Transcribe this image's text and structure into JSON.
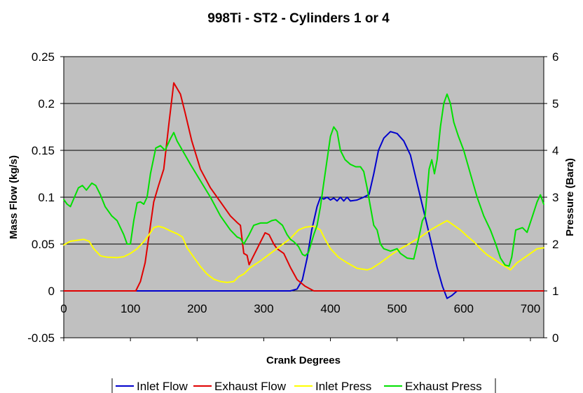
{
  "chart_data": {
    "type": "line",
    "title": "998Ti - ST2 - Cylinders 1 or 4",
    "xlabel": "Crank Degrees",
    "ylabel": "Mass Flow (kg/s)",
    "y2label": "Pressure (Bara)",
    "xlim": [
      0,
      720
    ],
    "ylim": [
      -0.05,
      0.25
    ],
    "y2lim": [
      0,
      6
    ],
    "x_ticks": [
      "0",
      "100",
      "200",
      "300",
      "400",
      "500",
      "600",
      "700"
    ],
    "y_ticks": [
      "-0.05",
      "0",
      "0.05",
      "0.1",
      "0.15",
      "0.2",
      "0.25"
    ],
    "y2_ticks": [
      "0",
      "1",
      "2",
      "3",
      "4",
      "5",
      "6"
    ],
    "grid": "horizontal",
    "plot_background": "#c0c0c0",
    "legend_position": "bottom",
    "series": [
      {
        "name": "Inlet Flow",
        "axis": "left",
        "color": "#0000cc",
        "points": [
          [
            0,
            0
          ],
          [
            340,
            0
          ],
          [
            350,
            0.002
          ],
          [
            358,
            0.012
          ],
          [
            365,
            0.035
          ],
          [
            372,
            0.065
          ],
          [
            380,
            0.09
          ],
          [
            385,
            0.1
          ],
          [
            390,
            0.098
          ],
          [
            395,
            0.1
          ],
          [
            400,
            0.097
          ],
          [
            405,
            0.099
          ],
          [
            410,
            0.096
          ],
          [
            415,
            0.1
          ],
          [
            420,
            0.096
          ],
          [
            425,
            0.1
          ],
          [
            430,
            0.096
          ],
          [
            440,
            0.097
          ],
          [
            450,
            0.1
          ],
          [
            458,
            0.103
          ],
          [
            465,
            0.125
          ],
          [
            472,
            0.15
          ],
          [
            480,
            0.163
          ],
          [
            490,
            0.17
          ],
          [
            500,
            0.168
          ],
          [
            510,
            0.16
          ],
          [
            520,
            0.145
          ],
          [
            530,
            0.115
          ],
          [
            540,
            0.085
          ],
          [
            550,
            0.055
          ],
          [
            560,
            0.025
          ],
          [
            568,
            0.005
          ],
          [
            575,
            -0.008
          ],
          [
            582,
            -0.005
          ],
          [
            590,
            0
          ],
          [
            720,
            0
          ]
        ]
      },
      {
        "name": "Exhaust Flow",
        "axis": "left",
        "color": "#e00000",
        "points": [
          [
            0,
            0
          ],
          [
            108,
            0
          ],
          [
            115,
            0.01
          ],
          [
            122,
            0.03
          ],
          [
            128,
            0.06
          ],
          [
            135,
            0.095
          ],
          [
            142,
            0.112
          ],
          [
            150,
            0.13
          ],
          [
            158,
            0.18
          ],
          [
            165,
            0.222
          ],
          [
            175,
            0.21
          ],
          [
            182,
            0.19
          ],
          [
            192,
            0.16
          ],
          [
            205,
            0.13
          ],
          [
            220,
            0.11
          ],
          [
            235,
            0.095
          ],
          [
            250,
            0.08
          ],
          [
            260,
            0.073
          ],
          [
            265,
            0.07
          ],
          [
            270,
            0.04
          ],
          [
            275,
            0.038
          ],
          [
            278,
            0.028
          ],
          [
            283,
            0.035
          ],
          [
            290,
            0.045
          ],
          [
            297,
            0.055
          ],
          [
            302,
            0.062
          ],
          [
            308,
            0.06
          ],
          [
            315,
            0.05
          ],
          [
            320,
            0.045
          ],
          [
            330,
            0.04
          ],
          [
            340,
            0.025
          ],
          [
            350,
            0.012
          ],
          [
            362,
            0.005
          ],
          [
            375,
            0
          ],
          [
            720,
            0
          ]
        ]
      },
      {
        "name": "Inlet Press",
        "axis": "right",
        "color": "#ffff00",
        "points": [
          [
            0,
            1.98
          ],
          [
            10,
            2.06
          ],
          [
            20,
            2.08
          ],
          [
            30,
            2.1
          ],
          [
            38,
            2.06
          ],
          [
            45,
            1.9
          ],
          [
            55,
            1.75
          ],
          [
            65,
            1.72
          ],
          [
            80,
            1.71
          ],
          [
            90,
            1.73
          ],
          [
            100,
            1.8
          ],
          [
            110,
            1.9
          ],
          [
            120,
            2.05
          ],
          [
            128,
            2.2
          ],
          [
            135,
            2.35
          ],
          [
            142,
            2.38
          ],
          [
            150,
            2.35
          ],
          [
            160,
            2.28
          ],
          [
            170,
            2.22
          ],
          [
            178,
            2.15
          ],
          [
            185,
            1.92
          ],
          [
            195,
            1.72
          ],
          [
            205,
            1.52
          ],
          [
            215,
            1.36
          ],
          [
            225,
            1.25
          ],
          [
            235,
            1.2
          ],
          [
            245,
            1.18
          ],
          [
            255,
            1.2
          ],
          [
            262,
            1.3
          ],
          [
            270,
            1.36
          ],
          [
            280,
            1.5
          ],
          [
            295,
            1.64
          ],
          [
            310,
            1.8
          ],
          [
            325,
            1.96
          ],
          [
            340,
            2.12
          ],
          [
            352,
            2.3
          ],
          [
            362,
            2.36
          ],
          [
            375,
            2.38
          ],
          [
            385,
            2.3
          ],
          [
            392,
            2.1
          ],
          [
            400,
            1.9
          ],
          [
            412,
            1.72
          ],
          [
            425,
            1.6
          ],
          [
            440,
            1.48
          ],
          [
            455,
            1.45
          ],
          [
            462,
            1.48
          ],
          [
            475,
            1.6
          ],
          [
            490,
            1.76
          ],
          [
            505,
            1.9
          ],
          [
            520,
            2.02
          ],
          [
            535,
            2.15
          ],
          [
            550,
            2.3
          ],
          [
            562,
            2.4
          ],
          [
            575,
            2.5
          ],
          [
            585,
            2.4
          ],
          [
            595,
            2.3
          ],
          [
            605,
            2.17
          ],
          [
            615,
            2.05
          ],
          [
            625,
            1.9
          ],
          [
            635,
            1.77
          ],
          [
            645,
            1.68
          ],
          [
            655,
            1.58
          ],
          [
            665,
            1.5
          ],
          [
            670,
            1.45
          ],
          [
            680,
            1.6
          ],
          [
            690,
            1.7
          ],
          [
            700,
            1.8
          ],
          [
            710,
            1.9
          ],
          [
            720,
            1.92
          ]
        ]
      },
      {
        "name": "Exhaust Press",
        "axis": "right",
        "color": "#00e000",
        "points": [
          [
            0,
            2.95
          ],
          [
            5,
            2.85
          ],
          [
            10,
            2.8
          ],
          [
            16,
            3.0
          ],
          [
            22,
            3.2
          ],
          [
            28,
            3.25
          ],
          [
            34,
            3.15
          ],
          [
            42,
            3.3
          ],
          [
            48,
            3.25
          ],
          [
            55,
            3.05
          ],
          [
            62,
            2.8
          ],
          [
            72,
            2.6
          ],
          [
            80,
            2.5
          ],
          [
            90,
            2.2
          ],
          [
            95,
            2.0
          ],
          [
            100,
            2.0
          ],
          [
            105,
            2.5
          ],
          [
            110,
            2.88
          ],
          [
            115,
            2.9
          ],
          [
            120,
            2.85
          ],
          [
            125,
            3.0
          ],
          [
            130,
            3.5
          ],
          [
            138,
            4.05
          ],
          [
            145,
            4.1
          ],
          [
            152,
            4.0
          ],
          [
            160,
            4.25
          ],
          [
            165,
            4.38
          ],
          [
            170,
            4.2
          ],
          [
            180,
            3.95
          ],
          [
            190,
            3.7
          ],
          [
            205,
            3.35
          ],
          [
            220,
            3.0
          ],
          [
            235,
            2.6
          ],
          [
            250,
            2.3
          ],
          [
            260,
            2.15
          ],
          [
            265,
            2.12
          ],
          [
            270,
            2.0
          ],
          [
            278,
            2.2
          ],
          [
            285,
            2.4
          ],
          [
            295,
            2.45
          ],
          [
            305,
            2.45
          ],
          [
            312,
            2.5
          ],
          [
            318,
            2.52
          ],
          [
            328,
            2.4
          ],
          [
            335,
            2.2
          ],
          [
            340,
            2.1
          ],
          [
            345,
            2.05
          ],
          [
            352,
            1.95
          ],
          [
            358,
            1.78
          ],
          [
            362,
            1.75
          ],
          [
            367,
            1.82
          ],
          [
            375,
            2.2
          ],
          [
            380,
            2.4
          ],
          [
            385,
            2.8
          ],
          [
            390,
            3.3
          ],
          [
            395,
            3.8
          ],
          [
            400,
            4.3
          ],
          [
            405,
            4.5
          ],
          [
            410,
            4.4
          ],
          [
            415,
            4.0
          ],
          [
            422,
            3.8
          ],
          [
            430,
            3.7
          ],
          [
            438,
            3.65
          ],
          [
            445,
            3.65
          ],
          [
            450,
            3.55
          ],
          [
            455,
            3.2
          ],
          [
            460,
            2.8
          ],
          [
            465,
            2.4
          ],
          [
            470,
            2.3
          ],
          [
            475,
            2.0
          ],
          [
            480,
            1.9
          ],
          [
            490,
            1.85
          ],
          [
            500,
            1.9
          ],
          [
            505,
            1.8
          ],
          [
            515,
            1.7
          ],
          [
            525,
            1.68
          ],
          [
            532,
            2.1
          ],
          [
            538,
            2.5
          ],
          [
            542,
            2.6
          ],
          [
            548,
            3.6
          ],
          [
            552,
            3.8
          ],
          [
            556,
            3.5
          ],
          [
            560,
            3.8
          ],
          [
            565,
            4.5
          ],
          [
            570,
            5.0
          ],
          [
            575,
            5.2
          ],
          [
            580,
            5.0
          ],
          [
            585,
            4.6
          ],
          [
            592,
            4.3
          ],
          [
            600,
            4.0
          ],
          [
            610,
            3.5
          ],
          [
            620,
            3.0
          ],
          [
            630,
            2.6
          ],
          [
            640,
            2.3
          ],
          [
            648,
            2.0
          ],
          [
            655,
            1.7
          ],
          [
            662,
            1.55
          ],
          [
            668,
            1.53
          ],
          [
            672,
            1.72
          ],
          [
            678,
            2.3
          ],
          [
            688,
            2.35
          ],
          [
            695,
            2.25
          ],
          [
            702,
            2.55
          ],
          [
            710,
            2.9
          ],
          [
            715,
            3.05
          ],
          [
            720,
            2.85
          ]
        ]
      }
    ]
  }
}
